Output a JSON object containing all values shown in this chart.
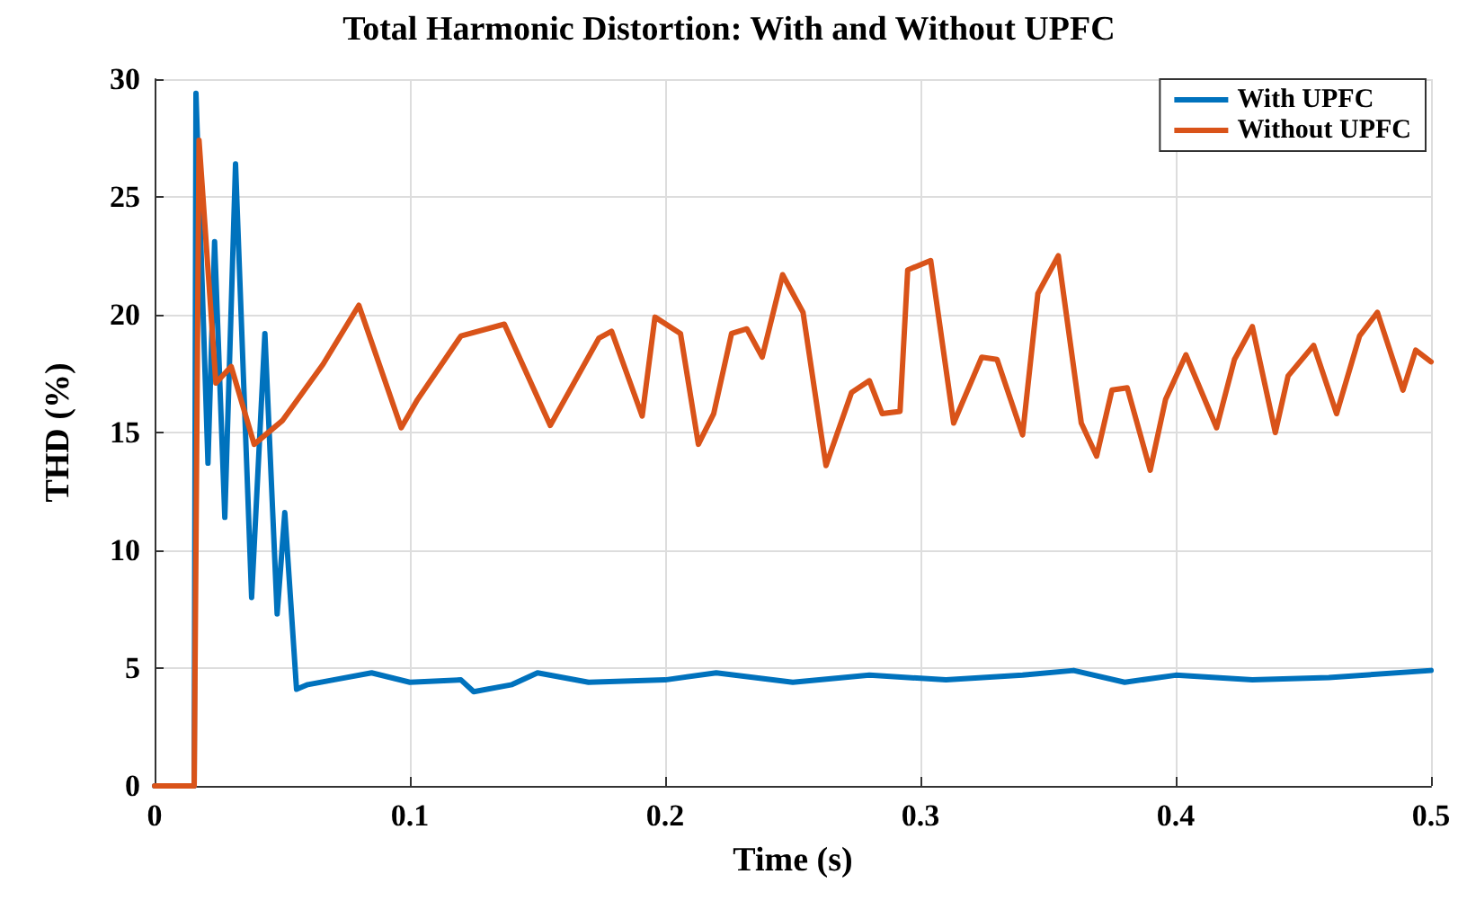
{
  "chart_data": {
    "type": "line",
    "title": "Total Harmonic Distortion: With and Without UPFC",
    "xlabel": "Time (s)",
    "ylabel": "THD (%)",
    "xlim": [
      0,
      0.5
    ],
    "xticks": [
      0,
      0.1,
      0.2,
      0.3,
      0.4,
      0.5
    ],
    "ylim": [
      0,
      30
    ],
    "yticks": [
      0,
      5,
      10,
      15,
      20,
      25,
      30
    ],
    "grid": true,
    "legend": "top right",
    "marker": "none",
    "line_style": "solid",
    "series": [
      {
        "name": "With UPFC",
        "color": "#0072bd",
        "x": [
          0,
          0.0155,
          0.0162,
          0.0209,
          0.0235,
          0.0275,
          0.0317,
          0.038,
          0.0432,
          0.048,
          0.051,
          0.0556,
          0.06,
          0.07,
          0.085,
          0.1,
          0.12,
          0.125,
          0.14,
          0.15,
          0.17,
          0.2,
          0.22,
          0.25,
          0.28,
          0.31,
          0.34,
          0.36,
          0.38,
          0.4,
          0.43,
          0.46,
          0.5
        ],
        "values": [
          0,
          0,
          29.4,
          13.7,
          23.1,
          11.4,
          26.4,
          8.0,
          19.2,
          7.3,
          11.6,
          4.1,
          4.3,
          4.5,
          4.8,
          4.4,
          4.5,
          4.0,
          4.3,
          4.8,
          4.4,
          4.5,
          4.8,
          4.4,
          4.7,
          4.5,
          4.7,
          4.9,
          4.4,
          4.7,
          4.5,
          4.6,
          4.9
        ]
      },
      {
        "name": "Without UPFC",
        "color": "#d95319",
        "x": [
          0,
          0.0155,
          0.0174,
          0.024,
          0.03,
          0.039,
          0.05,
          0.066,
          0.08,
          0.0966,
          0.103,
          0.12,
          0.137,
          0.155,
          0.174,
          0.179,
          0.191,
          0.196,
          0.206,
          0.213,
          0.219,
          0.226,
          0.232,
          0.238,
          0.246,
          0.254,
          0.261,
          0.263,
          0.273,
          0.28,
          0.285,
          0.292,
          0.295,
          0.304,
          0.313,
          0.324,
          0.33,
          0.34,
          0.346,
          0.354,
          0.363,
          0.369,
          0.375,
          0.381,
          0.39,
          0.396,
          0.404,
          0.416,
          0.423,
          0.43,
          0.439,
          0.444,
          0.454,
          0.463,
          0.472,
          0.479,
          0.489,
          0.494,
          0.5
        ],
        "values": [
          0,
          0,
          27.4,
          17.1,
          17.8,
          14.5,
          15.5,
          17.9,
          20.4,
          15.2,
          16.4,
          19.1,
          19.6,
          15.3,
          19.0,
          19.3,
          15.7,
          19.9,
          19.2,
          14.5,
          15.8,
          19.2,
          19.4,
          18.2,
          21.7,
          20.1,
          15.0,
          13.6,
          16.7,
          17.2,
          15.8,
          15.9,
          21.9,
          22.3,
          15.4,
          18.2,
          18.1,
          14.9,
          20.9,
          22.5,
          15.4,
          14.0,
          16.8,
          16.9,
          13.4,
          16.4,
          18.3,
          15.2,
          18.1,
          19.5,
          15.0,
          17.4,
          18.7,
          15.8,
          19.1,
          20.1,
          16.8,
          18.5,
          18.0
        ]
      }
    ]
  }
}
